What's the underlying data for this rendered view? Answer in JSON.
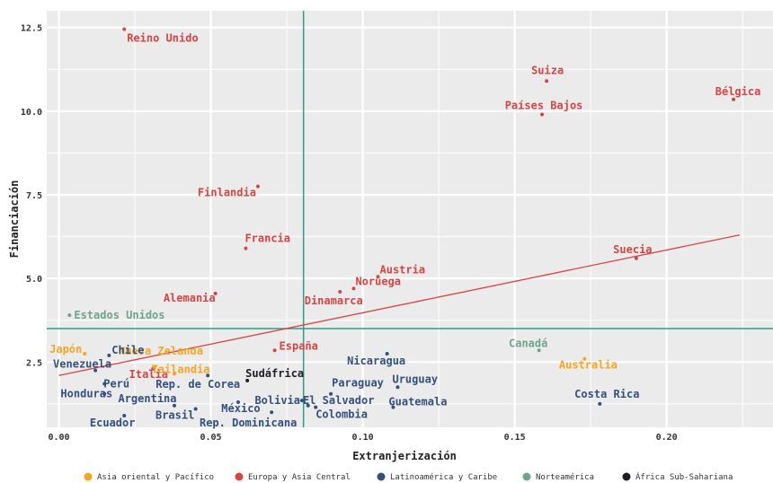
{
  "chart_data": {
    "type": "scatter",
    "xlabel": "Extranjerización",
    "ylabel": "Financiación",
    "xlim": [
      -0.004,
      0.235
    ],
    "ylim": [
      0.55,
      13.0
    ],
    "xticks": [
      "0.00",
      "0.05",
      "0.10",
      "0.15",
      "0.20"
    ],
    "yticks": [
      "2.5",
      "5.0",
      "7.5",
      "10.0",
      "12.5"
    ],
    "grid": true,
    "vline_x": 0.0805,
    "hline_y": 3.5,
    "trendline": {
      "x": [
        0.0,
        0.224
      ],
      "y": [
        2.1,
        6.3
      ]
    },
    "colors": {
      "asia": "#F5A623",
      "europa": "#D64545",
      "latam": "#34507F",
      "norteamerica": "#6FA58C",
      "africa": "#1E1E28",
      "reference": "#2E9E8A",
      "trend": "#D64545",
      "panel": "#EBEBEB"
    },
    "legend": [
      {
        "key": "asia",
        "name": "Asia oriental y Pacífico"
      },
      {
        "key": "europa",
        "name": "Europa y Asia Central"
      },
      {
        "key": "latam",
        "name": "Latinoamérica y Caribe"
      },
      {
        "key": "norteamerica",
        "name": "Norteamérica"
      },
      {
        "key": "africa",
        "name": "África Sub-Sahariana"
      }
    ],
    "points": [
      {
        "label": "Reino Unido",
        "x": 0.0215,
        "y": 12.45,
        "region": "europa",
        "anchor": "start",
        "dx": 3,
        "dy": 14
      },
      {
        "label": "Suiza",
        "x": 0.1605,
        "y": 10.9,
        "region": "europa",
        "anchor": "middle",
        "dx": 1,
        "dy": -8
      },
      {
        "label": "Países Bajos",
        "x": 0.159,
        "y": 9.9,
        "region": "europa",
        "anchor": "middle",
        "dx": 2,
        "dy": -6
      },
      {
        "label": "Bélgica",
        "x": 0.222,
        "y": 10.35,
        "region": "europa",
        "anchor": "middle",
        "dx": 5,
        "dy": -5
      },
      {
        "label": "Finlandia",
        "x": 0.0655,
        "y": 7.75,
        "region": "europa",
        "anchor": "end",
        "dx": -2,
        "dy": 11
      },
      {
        "label": "Francia",
        "x": 0.0615,
        "y": 5.9,
        "region": "europa",
        "anchor": "start",
        "dx": -1,
        "dy": -7
      },
      {
        "label": "Suecia",
        "x": 0.19,
        "y": 5.6,
        "region": "europa",
        "anchor": "middle",
        "dx": -4,
        "dy": -6
      },
      {
        "label": "Austria",
        "x": 0.105,
        "y": 5.05,
        "region": "europa",
        "anchor": "start",
        "dx": 2,
        "dy": -4
      },
      {
        "label": "Noruega",
        "x": 0.097,
        "y": 4.7,
        "region": "europa",
        "anchor": "start",
        "dx": 2,
        "dy": -4
      },
      {
        "label": "Dinamarca",
        "x": 0.0925,
        "y": 4.6,
        "region": "europa",
        "anchor": "middle",
        "dx": -7,
        "dy": 14
      },
      {
        "label": "Alemania",
        "x": 0.0515,
        "y": 4.55,
        "region": "europa",
        "anchor": "end",
        "dx": 0,
        "dy": 9
      },
      {
        "label": "España",
        "x": 0.071,
        "y": 2.85,
        "region": "europa",
        "anchor": "start",
        "dx": 5,
        "dy": -1
      },
      {
        "label": "Italia",
        "x": 0.031,
        "y": 2.3,
        "region": "europa",
        "anchor": "middle",
        "dx": -5,
        "dy": 10
      },
      {
        "label": "Estados Unidos",
        "x": 0.0035,
        "y": 3.9,
        "region": "norteamerica",
        "anchor": "start",
        "dx": 5,
        "dy": 4
      },
      {
        "label": "Canadá",
        "x": 0.158,
        "y": 2.85,
        "region": "norteamerica",
        "anchor": "middle",
        "dx": -12,
        "dy": -4
      },
      {
        "label": "Japón",
        "x": 0.0085,
        "y": 2.75,
        "region": "asia",
        "anchor": "end",
        "dx": -3,
        "dy": -1
      },
      {
        "label": "Nueva Zelanda",
        "x": 0.0315,
        "y": 2.35,
        "region": "asia",
        "anchor": "middle",
        "dx": 7,
        "dy": -14
      },
      {
        "label": "Tailandia",
        "x": 0.038,
        "y": 2.15,
        "region": "asia",
        "anchor": "middle",
        "dx": 7,
        "dy": -1
      },
      {
        "label": "Australia",
        "x": 0.173,
        "y": 2.6,
        "region": "asia",
        "anchor": "middle",
        "dx": 4,
        "dy": 11
      },
      {
        "label": "Chile",
        "x": 0.0165,
        "y": 2.7,
        "region": "latam",
        "anchor": "middle",
        "dx": 21,
        "dy": -2
      },
      {
        "label": "Venezuela",
        "x": 0.012,
        "y": 2.25,
        "region": "latam",
        "anchor": "end",
        "dx": 18,
        "dy": -3
      },
      {
        "label": "Perú",
        "x": 0.015,
        "y": 1.85,
        "region": "latam",
        "anchor": "start",
        "dx": -1,
        "dy": 4
      },
      {
        "label": "Honduras",
        "x": 0.015,
        "y": 1.55,
        "region": "latam",
        "anchor": "end",
        "dx": 9,
        "dy": 4
      },
      {
        "label": "Ecuador",
        "x": 0.0215,
        "y": 0.9,
        "region": "latam",
        "anchor": "middle",
        "dx": -13,
        "dy": 12
      },
      {
        "label": "Argentina",
        "x": 0.038,
        "y": 1.2,
        "region": "latam",
        "anchor": "middle",
        "dx": -30,
        "dy": -4
      },
      {
        "label": "Rep. de Corea",
        "x": 0.049,
        "y": 2.1,
        "region": "latam",
        "anchor": "middle",
        "dx": -11,
        "dy": 14
      },
      {
        "label": "Brasil",
        "x": 0.045,
        "y": 1.1,
        "region": "latam",
        "anchor": "middle",
        "dx": -23,
        "dy": 11
      },
      {
        "label": "México",
        "x": 0.059,
        "y": 1.3,
        "region": "latam",
        "anchor": "middle",
        "dx": 3,
        "dy": 11
      },
      {
        "label": "Rep. Dominicana",
        "x": 0.07,
        "y": 1.0,
        "region": "latam",
        "anchor": "middle",
        "dx": -26,
        "dy": 16
      },
      {
        "label": "Bolivia",
        "x": 0.082,
        "y": 1.2,
        "region": "latam",
        "anchor": "middle",
        "dx": -34,
        "dy": -2
      },
      {
        "label": "El Salvador",
        "x": 0.08,
        "y": 1.35,
        "region": "latam",
        "anchor": "start",
        "dx": 1,
        "dy": 4
      },
      {
        "label": "Colombia",
        "x": 0.0845,
        "y": 1.15,
        "region": "latam",
        "anchor": "start",
        "dx": 0,
        "dy": 12
      },
      {
        "label": "Paraguay",
        "x": 0.0895,
        "y": 1.55,
        "region": "latam",
        "anchor": "start",
        "dx": 1,
        "dy": -8
      },
      {
        "label": "Nicaragua",
        "x": 0.108,
        "y": 2.75,
        "region": "latam",
        "anchor": "middle",
        "dx": -12,
        "dy": 12
      },
      {
        "label": "Uruguay",
        "x": 0.1115,
        "y": 1.75,
        "region": "latam",
        "anchor": "start",
        "dx": -6,
        "dy": -5
      },
      {
        "label": "Guatemala",
        "x": 0.11,
        "y": 1.15,
        "region": "latam",
        "anchor": "start",
        "dx": -5,
        "dy": -2
      },
      {
        "label": "Costa Rica",
        "x": 0.178,
        "y": 1.25,
        "region": "latam",
        "anchor": "middle",
        "dx": 8,
        "dy": -7
      },
      {
        "label": "Sudáfrica",
        "x": 0.062,
        "y": 1.95,
        "region": "africa",
        "anchor": "start",
        "dx": -2,
        "dy": -4
      }
    ]
  }
}
